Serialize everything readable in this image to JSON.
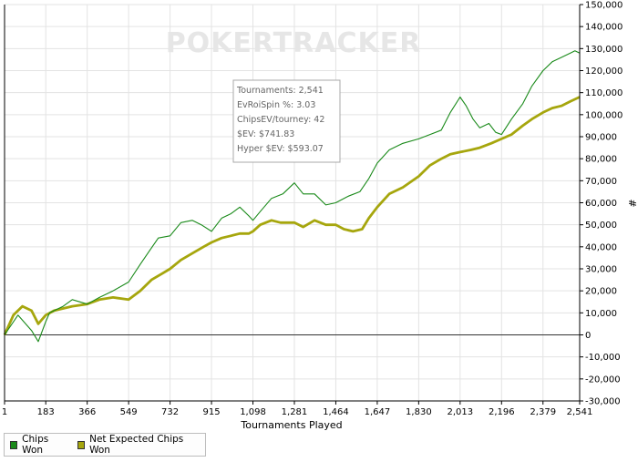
{
  "watermark": "POKERTRACKER",
  "info_box": {
    "lines": [
      "Tournaments: 2,541",
      "EvRoiSpin %: 3.03",
      "ChipsEV/tourney: 42",
      "$EV: $741.83",
      "Hyper $EV: $593.07"
    ]
  },
  "legend": {
    "items": [
      {
        "label": "Chips Won",
        "color": "#1a8a1a"
      },
      {
        "label": "Net Expected Chips Won",
        "color": "#a6a60d"
      }
    ]
  },
  "chart_data": {
    "type": "line",
    "xlabel": "Tournaments Played",
    "ylabel": "#",
    "xlim": [
      1,
      2541
    ],
    "ylim": [
      -30000,
      150000
    ],
    "x_ticks": [
      "1",
      "183",
      "366",
      "549",
      "732",
      "915",
      "1,098",
      "1,281",
      "1,464",
      "1,647",
      "1,830",
      "2,013",
      "2,196",
      "2,379",
      "2,541"
    ],
    "y_ticks": [
      "-30,000",
      "-20,000",
      "-10,000",
      "0",
      "10,000",
      "20,000",
      "30,000",
      "40,000",
      "50,000",
      "60,000",
      "70,000",
      "80,000",
      "90,000",
      "100,000",
      "110,000",
      "120,000",
      "130,000",
      "140,000",
      "150,000"
    ],
    "grid": true,
    "legend_position": "bottom-left",
    "series": [
      {
        "name": "Chips Won",
        "color": "#1a8a1a",
        "x": [
          1,
          60,
          120,
          150,
          183,
          200,
          260,
          300,
          366,
          420,
          480,
          549,
          600,
          640,
          680,
          732,
          780,
          830,
          870,
          915,
          960,
          1000,
          1040,
          1080,
          1098,
          1130,
          1180,
          1230,
          1281,
          1320,
          1370,
          1420,
          1464,
          1520,
          1570,
          1610,
          1647,
          1700,
          1760,
          1830,
          1880,
          1930,
          1970,
          2013,
          2040,
          2070,
          2100,
          2140,
          2170,
          2196,
          2240,
          2290,
          2330,
          2379,
          2420,
          2460,
          2500,
          2520,
          2541
        ],
        "values": [
          0,
          9000,
          2000,
          -3000,
          6000,
          10000,
          13000,
          16000,
          14000,
          17000,
          20000,
          24000,
          32000,
          38000,
          44000,
          45000,
          51000,
          52000,
          50000,
          47000,
          53000,
          55000,
          58000,
          54000,
          52000,
          56000,
          62000,
          64000,
          69000,
          64000,
          64000,
          59000,
          60000,
          63000,
          65000,
          71000,
          78000,
          84000,
          87000,
          89000,
          91000,
          93000,
          101000,
          108000,
          104000,
          98000,
          94000,
          96000,
          92000,
          91000,
          98000,
          105000,
          113000,
          120000,
          124000,
          126000,
          128000,
          129000,
          128000
        ]
      },
      {
        "name": "Net Expected Chips Won",
        "color": "#a6a60d",
        "x": [
          1,
          40,
          80,
          120,
          150,
          183,
          220,
          260,
          300,
          366,
          420,
          480,
          549,
          600,
          650,
          700,
          732,
          780,
          830,
          880,
          915,
          960,
          1000,
          1040,
          1080,
          1098,
          1130,
          1180,
          1220,
          1281,
          1320,
          1370,
          1420,
          1464,
          1500,
          1540,
          1580,
          1610,
          1647,
          1700,
          1760,
          1830,
          1880,
          1930,
          1970,
          2013,
          2060,
          2100,
          2150,
          2196,
          2240,
          2290,
          2330,
          2379,
          2420,
          2460,
          2500,
          2541
        ],
        "values": [
          0,
          9000,
          13000,
          11000,
          5000,
          9000,
          11000,
          12000,
          13000,
          14000,
          16000,
          17000,
          16000,
          20000,
          25000,
          28000,
          30000,
          34000,
          37000,
          40000,
          42000,
          44000,
          45000,
          46000,
          46000,
          47000,
          50000,
          52000,
          51000,
          51000,
          49000,
          52000,
          50000,
          50000,
          48000,
          47000,
          48000,
          53000,
          58000,
          64000,
          67000,
          72000,
          77000,
          80000,
          82000,
          83000,
          84000,
          85000,
          87000,
          89000,
          91000,
          95000,
          98000,
          101000,
          103000,
          104000,
          106000,
          108000
        ]
      }
    ]
  }
}
